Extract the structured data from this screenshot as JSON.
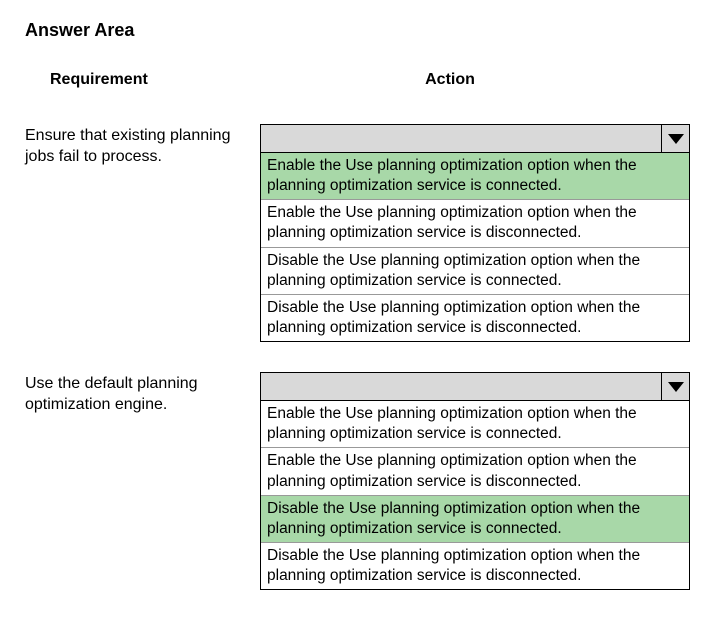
{
  "title": "Answer Area",
  "headers": {
    "requirement": "Requirement",
    "action": "Action"
  },
  "rows": [
    {
      "requirement": "Ensure that existing planning jobs fail to process.",
      "options": [
        {
          "text": "Enable the Use planning optimization option when the planning optimization service is connected.",
          "highlighted": true
        },
        {
          "text": "Enable the Use planning optimization option when the planning optimization service is disconnected.",
          "highlighted": false
        },
        {
          "text": "Disable the Use planning optimization option when the planning optimization service is connected.",
          "highlighted": false
        },
        {
          "text": "Disable the Use planning optimization option when the planning optimization service is disconnected.",
          "highlighted": false
        }
      ]
    },
    {
      "requirement": "Use the default planning optimization engine.",
      "options": [
        {
          "text": "Enable the Use planning optimization option when the planning optimization service is connected.",
          "highlighted": false
        },
        {
          "text": "Enable the Use planning optimization option when the planning optimization service is disconnected.",
          "highlighted": false
        },
        {
          "text": "Disable the Use planning optimization option when the planning optimization service is connected.",
          "highlighted": true
        },
        {
          "text": "Disable the Use planning optimization option when the planning optimization service is disconnected.",
          "highlighted": false
        }
      ]
    }
  ],
  "colors": {
    "highlight": "#a8d8a8",
    "dropdown_header": "#d9d9d9",
    "border": "#000000",
    "option_border": "#999999"
  }
}
